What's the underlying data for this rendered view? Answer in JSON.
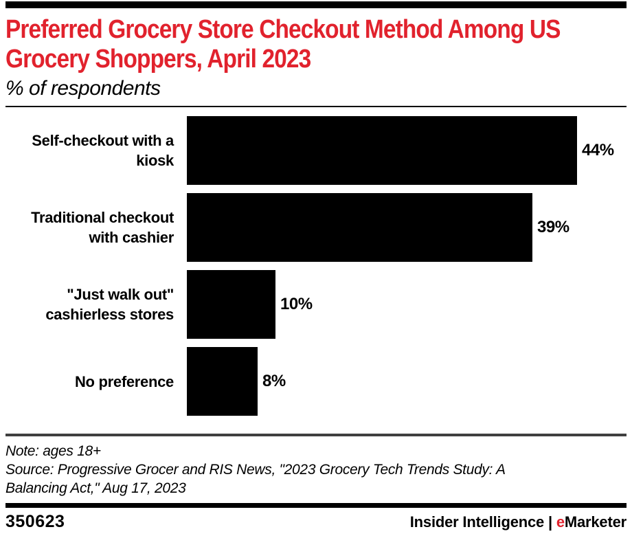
{
  "header": {
    "title_line1": "Preferred Grocery Store Checkout Method Among US",
    "title_line2": "Grocery Shoppers, April 2023",
    "subtitle": "% of respondents"
  },
  "chart_data": {
    "type": "bar",
    "orientation": "horizontal",
    "title": "Preferred Grocery Store Checkout Method Among US Grocery Shoppers, April 2023",
    "subtitle": "% of respondents",
    "categories": [
      "Self-checkout with a kiosk",
      "Traditional checkout with cashier",
      "\"Just walk out\" cashierless stores",
      "No preference"
    ],
    "values": [
      44,
      39,
      10,
      8
    ],
    "value_labels": [
      "44%",
      "39%",
      "10%",
      "8%"
    ],
    "unit": "%",
    "xlim": [
      0,
      50
    ],
    "bar_color": "#000000",
    "grid": false,
    "legend": "none"
  },
  "footnotes": {
    "note": "Note: ages 18+",
    "source": "Source: Progressive Grocer and RIS News, \"2023 Grocery Tech Trends Study: A Balancing Act,\" Aug 17, 2023"
  },
  "footer": {
    "chart_id": "350623",
    "brand_primary": "Insider Intelligence",
    "separator": " | ",
    "brand_accent_letter": "e",
    "brand_rest": "Marketer"
  },
  "colors": {
    "accent_red": "#e1222d",
    "bar_black": "#000000",
    "separator_gray": "#3f3f3f"
  }
}
